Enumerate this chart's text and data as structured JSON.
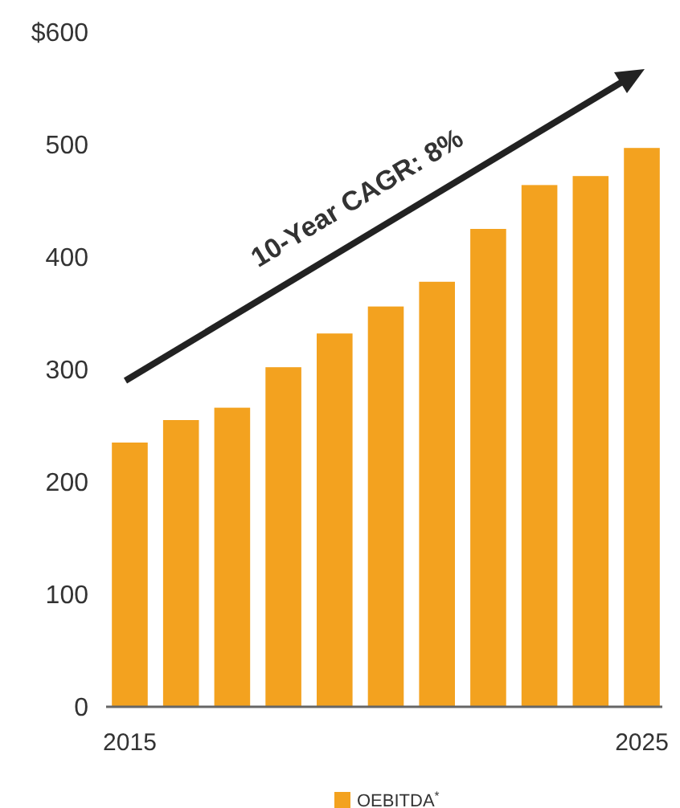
{
  "chart_data": {
    "type": "bar",
    "categories": [
      "2015",
      null,
      null,
      null,
      null,
      null,
      null,
      null,
      null,
      null,
      "2025"
    ],
    "series": [
      {
        "name": "OEBITDA$^{*}$",
        "color": "#f3a21f",
        "values": [
          235,
          255,
          266,
          302,
          332,
          356,
          378,
          425,
          464,
          472,
          497
        ]
      }
    ],
    "ylim": [
      0,
      600
    ],
    "yticks": [
      0,
      100,
      200,
      300,
      400,
      500,
      {
        "value": 600,
        "label": "$600"
      }
    ],
    "grid": false,
    "legend": "bottom",
    "annotations": [
      "10-Year CAGR: 8%"
    ]
  }
}
